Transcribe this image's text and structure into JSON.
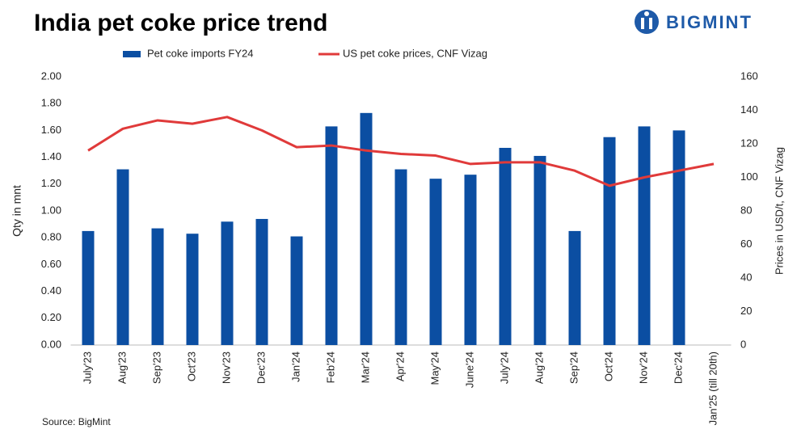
{
  "chart_data": {
    "type": "bar_line",
    "title": "India pet coke price trend",
    "logo": "BIGMINT",
    "source": "Source: BigMint",
    "y_label": "Qty in mnt",
    "y2_label": "Prices in USD/t, CNF Vizag",
    "categories": [
      "July'23",
      "Aug'23",
      "Sep'23",
      "Oct'23",
      "Nov'23",
      "Dec'23",
      "Jan'24",
      "Feb'24",
      "Mar'24",
      "Apr'24",
      "May'24",
      "June'24",
      "July'24",
      "Aug'24",
      "Sep'24",
      "Oct'24",
      "Nov'24",
      "Dec'24",
      "Jan'25 (till 20th)"
    ],
    "series": [
      {
        "name": "Pet coke imports FY24",
        "color": "#0b4ea2",
        "kind": "bar",
        "values": [
          0.85,
          1.31,
          0.87,
          0.83,
          0.92,
          0.94,
          0.81,
          1.63,
          1.73,
          1.31,
          1.24,
          1.27,
          1.47,
          1.41,
          0.85,
          1.55,
          1.63,
          1.6,
          null
        ]
      },
      {
        "name": "US pet coke prices, CNF Vizag",
        "color": "#e03a3a",
        "kind": "line",
        "axis": "y2",
        "values": [
          116,
          129,
          134,
          132,
          136,
          128,
          118,
          119,
          116,
          114,
          113,
          108,
          109,
          109,
          104,
          95,
          100,
          104,
          108
        ]
      }
    ],
    "ylim": [
      0,
      2
    ],
    "yticks": [
      {
        "value": 0,
        "label": "0.00"
      },
      {
        "value": 0.2,
        "label": "0.20"
      },
      {
        "value": 0.4,
        "label": "0.40"
      },
      {
        "value": 0.6,
        "label": "0.60"
      },
      {
        "value": 0.8,
        "label": "0.80"
      },
      {
        "value": 1,
        "label": "1.00"
      },
      {
        "value": 1.2,
        "label": "1.20"
      },
      {
        "value": 1.4,
        "label": "1.40"
      },
      {
        "value": 1.6,
        "label": "1.60"
      },
      {
        "value": 1.8,
        "label": "1.80"
      },
      {
        "value": 2,
        "label": "2.00"
      }
    ],
    "y2lim": [
      0,
      160
    ],
    "y2ticks": [
      0,
      20,
      40,
      60,
      80,
      100,
      120,
      140,
      160
    ],
    "grid": false
  }
}
